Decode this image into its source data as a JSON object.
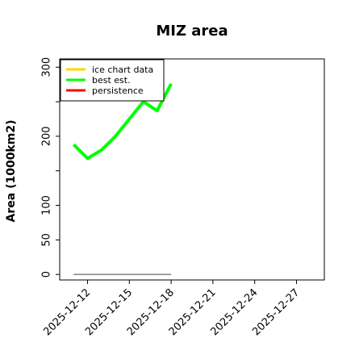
{
  "chart_data": {
    "type": "line",
    "title": "MIZ area",
    "xlabel": "",
    "ylabel": "Area (1000km2)",
    "x_tick_labels": [
      "2025-12-12",
      "2025-12-15",
      "2025-12-18",
      "2025-12-21",
      "2025-12-24",
      "2025-12-27"
    ],
    "xlim": [
      "2025-12-10",
      "2025-12-29"
    ],
    "y_ticks": [
      0,
      50,
      100,
      200,
      300
    ],
    "y_tick_labels": [
      "0",
      "50",
      "100",
      "200",
      "300"
    ],
    "ylim": [
      -8,
      312
    ],
    "legend_position": "top-left",
    "series": [
      {
        "name": "ice chart data",
        "color": "#ffd700",
        "x": [],
        "y": []
      },
      {
        "name": "best est.",
        "color": "#00ff00",
        "x": [
          "2025-12-11",
          "2025-12-12",
          "2025-12-13",
          "2025-12-14",
          "2025-12-15",
          "2025-12-16",
          "2025-12-17",
          "2025-12-18"
        ],
        "y": [
          188,
          168,
          180,
          200,
          225,
          250,
          237,
          276
        ]
      },
      {
        "name": "persistence",
        "color": "#ff0000",
        "x": [],
        "y": []
      }
    ],
    "reference_line": {
      "color": "#808080",
      "x": [
        "2025-12-11",
        "2025-12-18"
      ],
      "y": [
        0,
        0
      ]
    }
  }
}
